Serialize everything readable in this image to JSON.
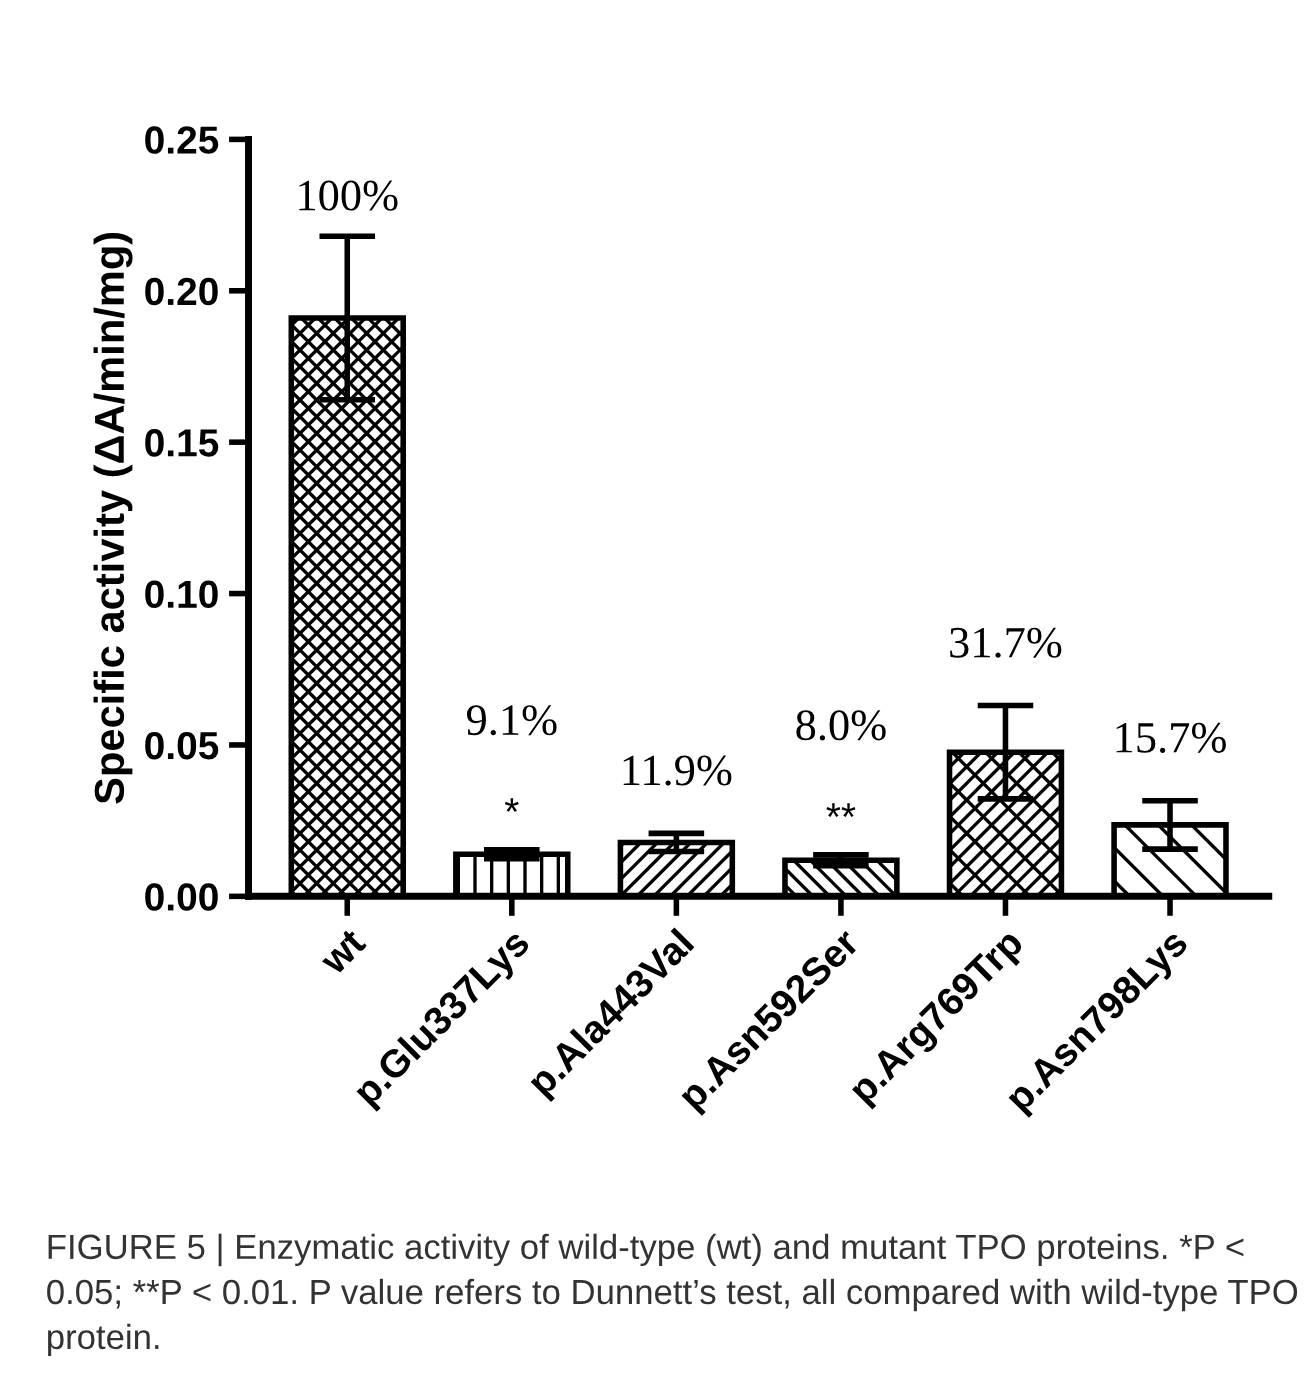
{
  "chart_data": {
    "type": "bar",
    "ylabel": "Specific activity (ΔA/min/mg)",
    "categories": [
      "wt",
      "p.Glu337Lys",
      "p.Ala443Val",
      "p.Asn592Ser",
      "p.Arg769Trp",
      "p.Asn798Lys"
    ],
    "values": [
      0.191,
      0.0139,
      0.0178,
      0.0119,
      0.0476,
      0.0236
    ],
    "errors": [
      0.027,
      0.0015,
      0.003,
      0.0018,
      0.0154,
      0.008
    ],
    "color": "#000000",
    "ylim": [
      0,
      0.25
    ],
    "yticks": [
      {
        "value": 0,
        "label": "0.00"
      },
      {
        "value": 0.05,
        "label": "0.05"
      },
      {
        "value": 0.1,
        "label": "0.10"
      },
      {
        "value": 0.15,
        "label": "0.15"
      },
      {
        "value": 0.2,
        "label": "0.20"
      },
      {
        "value": 0.25,
        "label": "0.25"
      }
    ],
    "grid": false,
    "legend": false,
    "annotations": [
      {
        "text": "100%",
        "x": "wt",
        "y": 0.191
      },
      {
        "text": "9.1%",
        "x": "p.Glu337Lys",
        "y": 0.0139
      },
      {
        "text": "11.9%",
        "x": "p.Ala443Val",
        "y": 0.0178
      },
      {
        "text": "8.0%",
        "x": "p.Asn592Ser",
        "y": 0.0119
      },
      {
        "text": "31.7%",
        "x": "p.Arg769Trp",
        "y": 0.0476
      },
      {
        "text": "15.7%",
        "x": "p.Asn798Lys",
        "y": 0.0236
      },
      "*",
      "**",
      "FIGURE 5 | Enzymatic activity of wild-type (wt) and mutant TPO proteins. *P < 0.05; **P < 0.01. P value refers to Dunnett’s test, all compared with wild-type TPO protein."
    ]
  }
}
